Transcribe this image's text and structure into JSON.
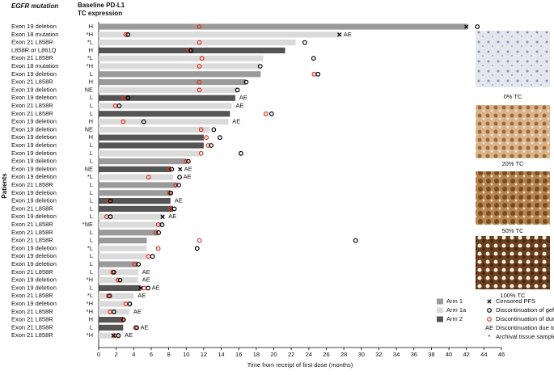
{
  "chart_data": {
    "type": "swimmer",
    "header_mutation": "EGFR mutation",
    "header_pdl1": [
      "Baseline PD-L1",
      "TC expression"
    ],
    "ylabel": "Patients",
    "xlabel": "Time from receipt of first dose (months)",
    "xlim": [
      0,
      46
    ],
    "xticks": [
      0,
      2,
      4,
      6,
      8,
      10,
      12,
      14,
      16,
      18,
      20,
      22,
      24,
      26,
      28,
      30,
      32,
      34,
      36,
      38,
      40,
      42,
      44,
      46
    ],
    "arms": [
      {
        "name": "Arm 1",
        "color": "#9a9a9a"
      },
      {
        "name": "Arm 1a",
        "color": "#dadada"
      },
      {
        "name": "Arm 2",
        "color": "#555555"
      }
    ],
    "marker_legend": [
      {
        "label": "Censored PFS"
      },
      {
        "label": "Discontinuation of gefitinib"
      },
      {
        "label": "Discontinuation of durvalumab"
      },
      {
        "symbol": "AE",
        "label": "Discontinuation due to AE"
      },
      {
        "symbol": "*",
        "label": "Archival tissue sample used"
      }
    ],
    "images": [
      "0% TC",
      "20% TC",
      "50% TC",
      "100% TC"
    ],
    "patients": [
      {
        "mutation": "Exon 19 deletion",
        "pdl1": "H",
        "arm": 0,
        "duration": 42.1,
        "censored": 42.0,
        "gefitinib": 43.2,
        "durvalumab": 11.5,
        "ae": null
      },
      {
        "mutation": "Exon 18 mutation",
        "pdl1": "*H",
        "arm": 1,
        "duration": 27.5,
        "censored": 27.5,
        "gefitinib": 3.3,
        "durvalumab": 3.1,
        "ae": "AE"
      },
      {
        "mutation": "Exon 21 L858R",
        "pdl1": "*L",
        "arm": 1,
        "duration": 22.5,
        "censored": null,
        "gefitinib": 23.5,
        "durvalumab": 11.5,
        "ae": null
      },
      {
        "mutation": "L858R or L861Q",
        "pdl1": "H",
        "arm": 2,
        "duration": 21.3,
        "censored": null,
        "gefitinib": 10.5,
        "durvalumab": 10.3,
        "ae": null
      },
      {
        "mutation": "Exon 21 L858R",
        "pdl1": "*L",
        "arm": 1,
        "duration": 18.8,
        "censored": null,
        "gefitinib": 24.5,
        "durvalumab": 11.8,
        "ae": null
      },
      {
        "mutation": "Exon 18 mutation",
        "pdl1": "*H",
        "arm": 1,
        "duration": 18.4,
        "censored": null,
        "gefitinib": 18.4,
        "durvalumab": 11.5,
        "ae": null
      },
      {
        "mutation": "Exon 19 deletion",
        "pdl1": "L",
        "arm": 0,
        "duration": 18.5,
        "censored": null,
        "gefitinib": 25.0,
        "durvalumab": 24.6,
        "ae": null
      },
      {
        "mutation": "Exon 21 L858R",
        "pdl1": "H",
        "arm": 0,
        "duration": 16.8,
        "censored": null,
        "gefitinib": 16.8,
        "durvalumab": 11.5,
        "ae": null
      },
      {
        "mutation": "Exon 19 deletion",
        "pdl1": "NE",
        "arm": 1,
        "duration": 15.8,
        "censored": null,
        "gefitinib": 15.8,
        "durvalumab": 11.5,
        "ae": null
      },
      {
        "mutation": "Exon 19 deletion",
        "pdl1": "L",
        "arm": 2,
        "duration": 15.6,
        "censored": null,
        "gefitinib": 3.3,
        "durvalumab": 2.9,
        "ae": "AE"
      },
      {
        "mutation": "Exon 21 L858R",
        "pdl1": "L",
        "arm": 1,
        "duration": 15.2,
        "censored": null,
        "gefitinib": 2.3,
        "durvalumab": 1.9,
        "ae": "AE"
      },
      {
        "mutation": "Exon 21 L858R",
        "pdl1": "L",
        "arm": 2,
        "duration": 15.0,
        "censored": null,
        "gefitinib": 19.7,
        "durvalumab": 19.1,
        "ae": null
      },
      {
        "mutation": "Exon 19 deletion",
        "pdl1": "H",
        "arm": 1,
        "duration": 14.8,
        "censored": null,
        "gefitinib": 5.1,
        "durvalumab": 2.8,
        "ae": "AE"
      },
      {
        "mutation": "Exon 19 deletion",
        "pdl1": "NE",
        "arm": 1,
        "duration": 12.7,
        "censored": null,
        "gefitinib": 13.1,
        "durvalumab": 11.7,
        "ae": null
      },
      {
        "mutation": "Exon 19 deletion",
        "pdl1": "H",
        "arm": 2,
        "duration": 12.0,
        "censored": null,
        "gefitinib": 13.8,
        "durvalumab": 12.3,
        "ae": null
      },
      {
        "mutation": "Exon 19 deletion",
        "pdl1": "L",
        "arm": 2,
        "duration": 12.0,
        "censored": null,
        "gefitinib": 12.8,
        "durvalumab": 12.5,
        "ae": null
      },
      {
        "mutation": "Exon 19 deletion",
        "pdl1": "L",
        "arm": 1,
        "duration": 11.5,
        "censored": null,
        "gefitinib": 16.2,
        "durvalumab": 11.7,
        "ae": null
      },
      {
        "mutation": "Exon 19 deletion",
        "pdl1": "L",
        "arm": 0,
        "duration": 10.0,
        "censored": null,
        "gefitinib": 10.2,
        "durvalumab": 10.0,
        "ae": null
      },
      {
        "mutation": "Exon 19 deletion",
        "pdl1": "NE",
        "arm": 2,
        "duration": 8.2,
        "censored": 9.3,
        "gefitinib": 8.3,
        "durvalumab": 8.1,
        "ae": "AE"
      },
      {
        "mutation": "Exon 19 deletion",
        "pdl1": "*L",
        "arm": 1,
        "duration": 8.5,
        "censored": null,
        "gefitinib": 9.2,
        "durvalumab": 5.7,
        "ae": "AE"
      },
      {
        "mutation": "Exon 21 L858R",
        "pdl1": "L",
        "arm": 0,
        "duration": 8.9,
        "censored": null,
        "gefitinib": 9.1,
        "durvalumab": 8.8,
        "ae": null
      },
      {
        "mutation": "Exon 19 deletion",
        "pdl1": "L",
        "arm": 0,
        "duration": 8.2,
        "censored": null,
        "gefitinib": 8.2,
        "durvalumab": 8.1,
        "ae": null
      },
      {
        "mutation": "Exon 19 deletion",
        "pdl1": "L",
        "arm": 2,
        "duration": 8.2,
        "censored": null,
        "gefitinib": 1.3,
        "durvalumab": 1.1,
        "ae": "AE"
      },
      {
        "mutation": "Exon 21 L858R",
        "pdl1": "L",
        "arm": 2,
        "duration": 8.5,
        "censored": null,
        "gefitinib": 8.6,
        "durvalumab": 8.2,
        "ae": null
      },
      {
        "mutation": "Exon 19 deletion",
        "pdl1": "L",
        "arm": 1,
        "duration": 7.5,
        "censored": 7.3,
        "gefitinib": 1.3,
        "durvalumab": 0.9,
        "ae": "AE"
      },
      {
        "mutation": "Exon 21 L858R",
        "pdl1": "*NE",
        "arm": 1,
        "duration": 7.3,
        "censored": null,
        "gefitinib": 7.2,
        "durvalumab": 6.8,
        "ae": null
      },
      {
        "mutation": "Exon 21 L858R",
        "pdl1": "L",
        "arm": 0,
        "duration": 6.8,
        "censored": null,
        "gefitinib": 6.8,
        "durvalumab": 6.5,
        "ae": null
      },
      {
        "mutation": "Exon 21 L858R",
        "pdl1": "L",
        "arm": 0,
        "duration": 5.5,
        "censored": null,
        "gefitinib": 29.3,
        "durvalumab": 11.5,
        "ae": null
      },
      {
        "mutation": "Exon 19 deletion",
        "pdl1": "*L",
        "arm": 1,
        "duration": 5.5,
        "censored": null,
        "gefitinib": 11.2,
        "durvalumab": 6.8,
        "ae": null
      },
      {
        "mutation": "Exon 19 deletion",
        "pdl1": "L",
        "arm": 1,
        "duration": 5.6,
        "censored": null,
        "gefitinib": 6.1,
        "durvalumab": 5.7,
        "ae": null
      },
      {
        "mutation": "Exon 19 deletion",
        "pdl1": "L",
        "arm": 0,
        "duration": 4.5,
        "censored": null,
        "gefitinib": 4.5,
        "durvalumab": 4.1,
        "ae": null
      },
      {
        "mutation": "Exon 21 L858R",
        "pdl1": "L",
        "arm": 1,
        "duration": 4.5,
        "censored": null,
        "gefitinib": 1.7,
        "durvalumab": 1.6,
        "ae": "AE"
      },
      {
        "mutation": "Exon 19 deletion",
        "pdl1": "*H",
        "arm": 1,
        "duration": 4.5,
        "censored": null,
        "gefitinib": 2.4,
        "durvalumab": 2.2,
        "ae": "AE"
      },
      {
        "mutation": "Exon 19 deletion",
        "pdl1": "L",
        "arm": 2,
        "duration": 4.8,
        "censored": 4.8,
        "gefitinib": 5.6,
        "durvalumab": 5.2,
        "ae": "AE"
      },
      {
        "mutation": "Exon 21 L858R",
        "pdl1": "*L",
        "arm": 1,
        "duration": 4.0,
        "censored": null,
        "gefitinib": 1.2,
        "durvalumab": 1.1,
        "ae": "AE"
      },
      {
        "mutation": "Exon 19 deletion",
        "pdl1": "*H",
        "arm": 1,
        "duration": 3.8,
        "censored": null,
        "gefitinib": 3.5,
        "durvalumab": 3.1,
        "ae": null
      },
      {
        "mutation": "Exon 21 L858R",
        "pdl1": "*H",
        "arm": 1,
        "duration": 3.5,
        "censored": null,
        "gefitinib": 1.7,
        "durvalumab": 1.3,
        "ae": "AE"
      },
      {
        "mutation": "Exon 21 L858R",
        "pdl1": "H",
        "arm": 2,
        "duration": 2.8,
        "censored": null,
        "gefitinib": 2.8,
        "durvalumab": 2.7,
        "ae": null
      },
      {
        "mutation": "Exon 21 L858R",
        "pdl1": "L",
        "arm": 2,
        "duration": 2.8,
        "censored": null,
        "gefitinib": 4.3,
        "durvalumab": 4.2,
        "ae": "AE"
      },
      {
        "mutation": "Exon 21 L858R",
        "pdl1": "*H",
        "arm": 1,
        "duration": 2.5,
        "censored": 1.7,
        "gefitinib": 2.2,
        "durvalumab": 1.8,
        "ae": "AE"
      }
    ]
  }
}
